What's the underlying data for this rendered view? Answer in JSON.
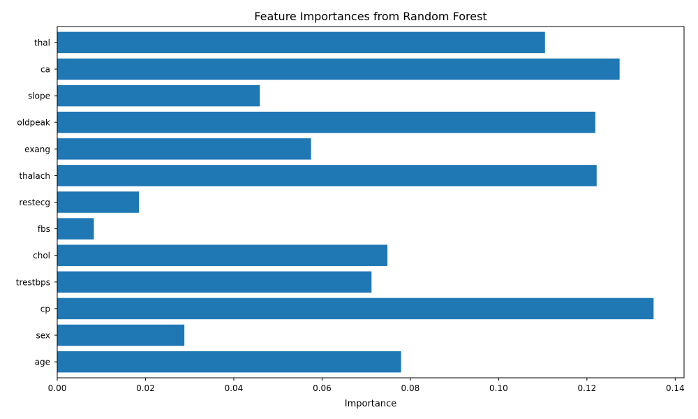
{
  "chart_data": {
    "type": "bar",
    "orientation": "horizontal",
    "title": "Feature Importances from Random Forest",
    "xlabel": "Importance",
    "ylabel": "",
    "xlim": [
      0,
      0.142
    ],
    "x_ticks": [
      "0.00",
      "0.02",
      "0.04",
      "0.06",
      "0.08",
      "0.10",
      "0.12",
      "0.14"
    ],
    "categories": [
      "age",
      "sex",
      "cp",
      "trestbps",
      "chol",
      "fbs",
      "restecg",
      "thalach",
      "exang",
      "oldpeak",
      "slope",
      "ca",
      "thal"
    ],
    "values": [
      0.0779,
      0.0288,
      0.1351,
      0.0712,
      0.0748,
      0.0083,
      0.0185,
      0.1222,
      0.0575,
      0.1219,
      0.0459,
      0.1274,
      0.1105
    ],
    "bar_color": "#1f77b4",
    "grid": false,
    "legend": "none"
  }
}
